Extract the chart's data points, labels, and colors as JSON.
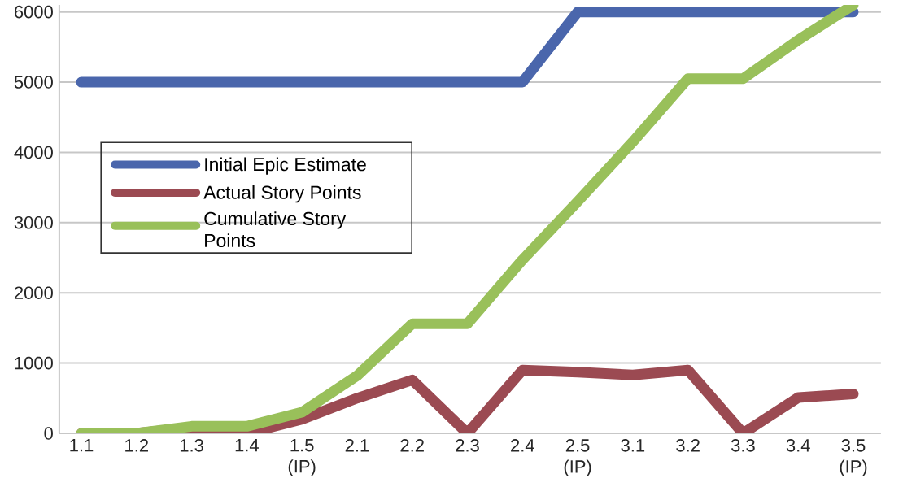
{
  "chart_data": {
    "type": "line",
    "categories": [
      "1.1",
      "1.2",
      "1.3",
      "1.4",
      "1.5 (IP)",
      "2.1",
      "2.2",
      "2.3",
      "2.4",
      "2.5 (IP)",
      "3.1",
      "3.2",
      "3.3",
      "3.4",
      "3.5 (IP)"
    ],
    "series": [
      {
        "name": "Initial Epic Estimate",
        "color": "#4a66ac",
        "values": [
          5000,
          5000,
          5000,
          5000,
          5000,
          5000,
          5000,
          5000,
          5000,
          6000,
          6000,
          6000,
          6000,
          6000,
          6000
        ]
      },
      {
        "name": "Actual Story Points",
        "color": "#9b4a52",
        "values": [
          0,
          0,
          80,
          0,
          200,
          500,
          760,
          0,
          900,
          870,
          830,
          900,
          0,
          510,
          560
        ]
      },
      {
        "name": "Cumulative Story Points",
        "color": "#99c05a",
        "values": [
          0,
          0,
          100,
          100,
          300,
          820,
          1560,
          1560,
          2470,
          3300,
          4150,
          5050,
          5050,
          5600,
          6100
        ]
      }
    ],
    "ylim": [
      0,
      6100
    ],
    "yticks": [
      0,
      1000,
      2000,
      3000,
      4000,
      5000,
      6000
    ],
    "grid": "y",
    "legend": "left"
  }
}
